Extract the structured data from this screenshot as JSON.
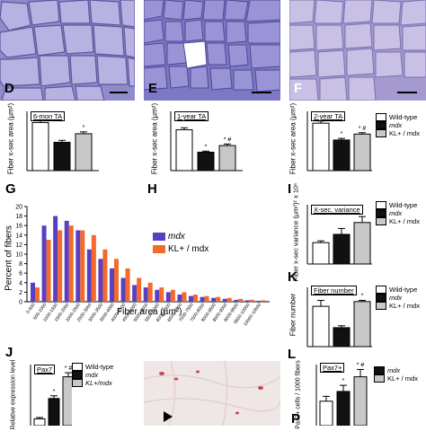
{
  "panels": {
    "D": "D",
    "E": "E",
    "F": "F",
    "G": "G",
    "H": "H",
    "I": "I",
    "J": "J",
    "K": "K",
    "L": "L",
    "P": "P"
  },
  "axes": {
    "fiber_xsec": "Fiber x-sec area (µm²)",
    "percent": "Percent of fibers",
    "fiber_area": "Fiber area (µm²)",
    "variance": "Fiber x-sec variance (µm²)² x 10⁶",
    "fiber_number": "Fiber number",
    "relative_expression": "Relative expression level",
    "pax7_cells": "Pax7+ cells / 1000 fibers"
  },
  "legend": {
    "wild_type": "Wild-type",
    "mdx": "mdx",
    "kl_mdx": "KL+ / mdx",
    "kl_mdx_tight": "KL+/mdx",
    "kl_mdx_chart": "KL+ / mdx"
  },
  "colors": {
    "mdx": "#5a3fc0",
    "kl_mdx": "#f26a2c",
    "gray": "#c8c8c8",
    "black": "#111111"
  },
  "chart_data": [
    {
      "type": "bar",
      "title": "6-mon TA",
      "ylabel": "Fiber x-sec area (µm²)",
      "series": [
        {
          "name": "Wild-type",
          "values": [
            3650
          ],
          "err": [
            180
          ]
        },
        {
          "name": "mdx",
          "values": [
            2150
          ],
          "err": [
            150
          ]
        },
        {
          "name": "KL+ / mdx",
          "values": [
            2800
          ],
          "err": [
            140
          ]
        }
      ],
      "annotations": [
        "*"
      ],
      "ylim": [
        0,
        4500
      ]
    },
    {
      "type": "bar",
      "title": "1-year TA",
      "ylabel": "Fiber x-sec area (µm²)",
      "series": [
        {
          "name": "Wild-type",
          "values": [
            3100
          ],
          "err": [
            150
          ]
        },
        {
          "name": "mdx",
          "values": [
            1400
          ],
          "err": [
            80
          ]
        },
        {
          "name": "KL+ / mdx",
          "values": [
            1900
          ],
          "err": [
            120
          ]
        }
      ],
      "annotations": [
        "*",
        "* #"
      ],
      "ylim": [
        0,
        4500
      ]
    },
    {
      "type": "bar",
      "title": "2-year TA",
      "ylabel": "Fiber x-sec area (µm²)",
      "series": [
        {
          "name": "Wild-type",
          "values": [
            2400
          ],
          "err": [
            110
          ]
        },
        {
          "name": "mdx",
          "values": [
            1550
          ],
          "err": [
            80
          ]
        },
        {
          "name": "KL+ / mdx",
          "values": [
            1850
          ],
          "err": [
            70
          ]
        }
      ],
      "annotations": [
        "*",
        "* #"
      ],
      "ylim": [
        0,
        3000
      ]
    },
    {
      "type": "bar",
      "xlabel": "Fiber area (µm²)",
      "ylabel": "Percent of fibers",
      "categories": [
        "0-500",
        "500-1000",
        "1000-1500",
        "1500-2000",
        "2000-2500",
        "2500-3000",
        "3000-3500",
        "3500-4000",
        "4000-4500",
        "4500-5000",
        "5000-5500",
        "5500-6000",
        "6000-6500",
        "6500-7000",
        "7000-7500",
        "7500-8000",
        "8000-8500",
        "8500-9000",
        "9000-9500",
        "9500-10000",
        "10000-10500"
      ],
      "series": [
        {
          "name": "mdx",
          "values": [
            4,
            16,
            18,
            17,
            15,
            11,
            9,
            7,
            5,
            3.5,
            3,
            2.5,
            2,
            1.5,
            1.2,
            1,
            0.8,
            0.6,
            0.4,
            0.3,
            0.2
          ]
        },
        {
          "name": "KL+ / mdx",
          "values": [
            3,
            13,
            15,
            16,
            15,
            14,
            11,
            9,
            7,
            5,
            4,
            3,
            2.5,
            2,
            1.5,
            1.2,
            1,
            0.8,
            0.6,
            0.4,
            0.3
          ]
        }
      ],
      "ylim": [
        0,
        20
      ],
      "yticks": [
        "0",
        "2",
        "4",
        "6",
        "8",
        "10",
        "12",
        "14",
        "16",
        "18",
        "20"
      ]
    },
    {
      "type": "bar",
      "title": "X-sec. variance",
      "ylabel": "Fiber x-sec variance (µm²)² x 10⁶",
      "series": [
        {
          "name": "Wild-type",
          "values": [
            1.8
          ],
          "err": [
            0.15
          ]
        },
        {
          "name": "mdx",
          "values": [
            2.5
          ],
          "err": [
            0.5
          ]
        },
        {
          "name": "KL+ / mdx",
          "values": [
            3.5
          ],
          "err": [
            0.5
          ]
        }
      ],
      "annotations": [
        "*"
      ],
      "ylim": [
        0,
        5
      ]
    },
    {
      "type": "bar",
      "title": "Fiber number",
      "ylabel": "Fiber number",
      "series": [
        {
          "name": "Wild-type",
          "values": [
            1700
          ],
          "err": [
            250
          ]
        },
        {
          "name": "mdx",
          "values": [
            800
          ],
          "err": [
            80
          ]
        },
        {
          "name": "KL+ / mdx",
          "values": [
            1900
          ],
          "err": [
            50
          ]
        }
      ],
      "annotations": [
        "*"
      ],
      "ylim": [
        0,
        2500
      ]
    },
    {
      "type": "bar",
      "title": "Pax7",
      "ylabel": "Relative expression level",
      "series": [
        {
          "name": "Wild-type",
          "values": [
            1
          ],
          "err": [
            0.2
          ]
        },
        {
          "name": "mdx",
          "values": [
            4
          ],
          "err": [
            0.4
          ]
        },
        {
          "name": "KL+/mdx",
          "values": [
            7.2
          ],
          "err": [
            0.6
          ]
        }
      ],
      "annotations": [
        "*",
        "* #"
      ],
      "ylim": [
        0,
        9
      ]
    },
    {
      "type": "bar",
      "title": "Pax7+",
      "ylabel": "Pax7+ cells / 1000 fibers",
      "series": [
        {
          "name": "Wild-type",
          "values": [
            20
          ],
          "err": [
            4
          ]
        },
        {
          "name": "mdx",
          "values": [
            28
          ],
          "err": [
            5
          ]
        },
        {
          "name": "KL+ / mdx",
          "values": [
            40
          ],
          "err": [
            6
          ]
        }
      ],
      "annotations": [
        "*",
        "* #"
      ],
      "ylim": [
        0,
        50
      ]
    }
  ]
}
